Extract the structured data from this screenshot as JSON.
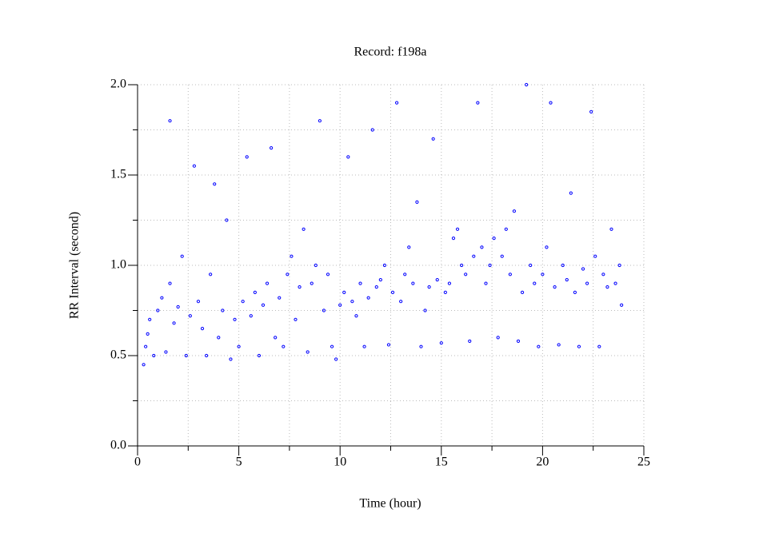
{
  "chart_data": {
    "type": "scatter",
    "title": "Record:  f198a",
    "x_label": "Time (hour)",
    "y_label": "RR Interval (second)",
    "color": "#0000ff",
    "grid": true,
    "xlim": [
      0,
      25
    ],
    "xticks": [
      0,
      5,
      10,
      15,
      20,
      25
    ],
    "xminorticks": [
      2.5,
      7.5,
      12.5,
      17.5,
      22.5
    ],
    "ylim": [
      0,
      2
    ],
    "yticks": [
      {
        "value": 0,
        "label": "0.0"
      },
      {
        "value": 0.5,
        "label": "0.5"
      },
      {
        "value": 1,
        "label": "1.0"
      },
      {
        "value": 1.5,
        "label": "1.5"
      },
      {
        "value": 2,
        "label": "2.0"
      }
    ],
    "yminorticks": [
      0.25,
      0.75,
      1.25,
      1.75
    ],
    "x": [
      0.3,
      0.4,
      0.5,
      0.6,
      0.8,
      1.0,
      1.2,
      1.4,
      1.6,
      1.6,
      1.8,
      2.0,
      2.2,
      2.4,
      2.6,
      2.8,
      3.0,
      3.2,
      3.4,
      3.6,
      3.8,
      4.0,
      4.2,
      4.4,
      4.6,
      4.8,
      5.0,
      5.2,
      5.4,
      5.6,
      5.8,
      6.0,
      6.2,
      6.4,
      6.6,
      6.8,
      7.0,
      7.2,
      7.4,
      7.6,
      7.8,
      8.0,
      8.2,
      8.4,
      8.6,
      8.8,
      9.0,
      9.2,
      9.4,
      9.6,
      9.8,
      10.0,
      10.2,
      10.4,
      10.6,
      10.8,
      11.0,
      11.2,
      11.4,
      11.6,
      11.8,
      12.0,
      12.2,
      12.4,
      12.6,
      12.8,
      13.0,
      13.2,
      13.4,
      13.6,
      13.8,
      14.0,
      14.2,
      14.4,
      14.6,
      14.8,
      15.0,
      15.2,
      15.4,
      15.6,
      15.8,
      16.0,
      16.2,
      16.4,
      16.6,
      16.8,
      17.0,
      17.2,
      17.4,
      17.6,
      17.8,
      18.0,
      18.2,
      18.4,
      18.6,
      18.8,
      19.0,
      19.2,
      19.4,
      19.6,
      19.8,
      20.0,
      20.2,
      20.4,
      20.6,
      20.8,
      21.0,
      21.2,
      21.4,
      21.6,
      21.8,
      22.0,
      22.2,
      22.4,
      22.6,
      22.8,
      23.0,
      23.2,
      23.4,
      23.6,
      23.8,
      23.9
    ],
    "values": [
      0.45,
      0.55,
      0.62,
      0.7,
      0.5,
      0.75,
      0.82,
      0.52,
      0.9,
      1.8,
      0.68,
      0.77,
      1.05,
      0.5,
      0.72,
      1.55,
      0.8,
      0.65,
      0.5,
      0.95,
      1.45,
      0.6,
      0.75,
      1.25,
      0.48,
      0.7,
      0.55,
      0.8,
      1.6,
      0.72,
      0.85,
      0.5,
      0.78,
      0.9,
      1.65,
      0.6,
      0.82,
      0.55,
      0.95,
      1.05,
      0.7,
      0.88,
      1.2,
      0.52,
      0.9,
      1.0,
      1.8,
      0.75,
      0.95,
      0.55,
      0.48,
      0.78,
      0.85,
      1.6,
      0.8,
      0.72,
      0.9,
      0.55,
      0.82,
      1.75,
      0.88,
      0.92,
      1.0,
      0.56,
      0.85,
      1.9,
      0.8,
      0.95,
      1.1,
      0.9,
      1.35,
      0.55,
      0.75,
      0.88,
      1.7,
      0.92,
      0.57,
      0.85,
      0.9,
      1.15,
      1.2,
      1.0,
      0.95,
      0.58,
      1.05,
      1.9,
      1.1,
      0.9,
      1.0,
      1.15,
      0.6,
      1.05,
      1.2,
      0.95,
      1.3,
      0.58,
      0.85,
      2.0,
      1.0,
      0.9,
      0.55,
      0.95,
      1.1,
      1.9,
      0.88,
      0.56,
      1.0,
      0.92,
      1.4,
      0.85,
      0.55,
      0.98,
      0.9,
      1.85,
      1.05,
      0.55,
      0.95,
      0.88,
      1.2,
      0.9,
      1.0,
      0.78
    ]
  }
}
